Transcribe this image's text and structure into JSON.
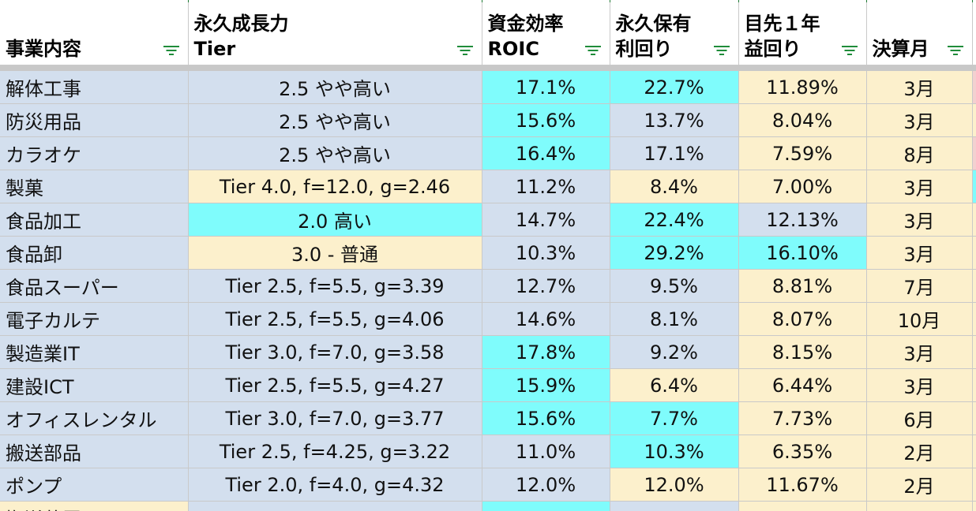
{
  "colors": {
    "blue": "#d3dfee",
    "cyan": "#7ffcfc",
    "yellow": "#fcf0cc",
    "pink": "#f3d0d0",
    "header_bg": "#ffffff",
    "filter_green": "#1f8c3a"
  },
  "headers": [
    {
      "line1": "事業内容",
      "line2": ""
    },
    {
      "line1": "永久成長力",
      "line2": "Tier"
    },
    {
      "line1": "資金効率",
      "line2": "ROIC"
    },
    {
      "line1": "永久保有",
      "line2": "利回り"
    },
    {
      "line1": "目先１年",
      "line2": "益回り"
    },
    {
      "line1": "決算月",
      "line2": ""
    }
  ],
  "filter_icon": "filter-icon",
  "rows": [
    {
      "cells": [
        {
          "text": "解体工事",
          "color": "blue"
        },
        {
          "text": "2.5 やや高い",
          "color": "blue"
        },
        {
          "text": "17.1%",
          "color": "cyan"
        },
        {
          "text": "22.7%",
          "color": "cyan"
        },
        {
          "text": "11.89%",
          "color": "yellow"
        },
        {
          "text": "3月",
          "color": "yellow"
        },
        {
          "text": "",
          "color": "pink"
        }
      ]
    },
    {
      "cells": [
        {
          "text": "防災用品",
          "color": "blue"
        },
        {
          "text": "2.5 やや高い",
          "color": "blue"
        },
        {
          "text": "15.6%",
          "color": "cyan"
        },
        {
          "text": "13.7%",
          "color": "blue"
        },
        {
          "text": "8.04%",
          "color": "yellow"
        },
        {
          "text": "3月",
          "color": "yellow"
        },
        {
          "text": "",
          "color": "yellow"
        }
      ]
    },
    {
      "cells": [
        {
          "text": "カラオケ",
          "color": "blue"
        },
        {
          "text": "2.5 やや高い",
          "color": "blue"
        },
        {
          "text": "16.4%",
          "color": "cyan"
        },
        {
          "text": "17.1%",
          "color": "blue"
        },
        {
          "text": "7.59%",
          "color": "yellow"
        },
        {
          "text": "8月",
          "color": "yellow"
        },
        {
          "text": "",
          "color": "pink"
        }
      ]
    },
    {
      "cells": [
        {
          "text": "製菓",
          "color": "blue"
        },
        {
          "text": "Tier 4.0,  f=12.0,  g=2.46",
          "color": "yellow"
        },
        {
          "text": "11.2%",
          "color": "blue"
        },
        {
          "text": "8.4%",
          "color": "yellow"
        },
        {
          "text": "7.00%",
          "color": "yellow"
        },
        {
          "text": "3月",
          "color": "yellow"
        },
        {
          "text": "",
          "color": "cyan"
        }
      ]
    },
    {
      "cells": [
        {
          "text": "食品加工",
          "color": "blue"
        },
        {
          "text": "2.0 高い",
          "color": "cyan"
        },
        {
          "text": "14.7%",
          "color": "blue"
        },
        {
          "text": "22.4%",
          "color": "cyan"
        },
        {
          "text": "12.13%",
          "color": "blue"
        },
        {
          "text": "3月",
          "color": "yellow"
        },
        {
          "text": "",
          "color": "yellow"
        }
      ]
    },
    {
      "cells": [
        {
          "text": "食品卸",
          "color": "blue"
        },
        {
          "text": "3.0 - 普通",
          "color": "yellow"
        },
        {
          "text": "10.3%",
          "color": "blue"
        },
        {
          "text": "29.2%",
          "color": "cyan"
        },
        {
          "text": "16.10%",
          "color": "cyan"
        },
        {
          "text": "3月",
          "color": "yellow"
        },
        {
          "text": "",
          "color": "yellow"
        }
      ]
    },
    {
      "cells": [
        {
          "text": "食品スーパー",
          "color": "blue"
        },
        {
          "text": "Tier 2.5,  f=5.5,  g=3.39",
          "color": "blue"
        },
        {
          "text": "12.7%",
          "color": "blue"
        },
        {
          "text": "9.5%",
          "color": "blue"
        },
        {
          "text": "8.81%",
          "color": "yellow"
        },
        {
          "text": "7月",
          "color": "yellow"
        },
        {
          "text": "",
          "color": "yellow"
        }
      ]
    },
    {
      "cells": [
        {
          "text": "電子カルテ",
          "color": "blue"
        },
        {
          "text": "Tier 2.5,  f=5.5,  g=4.06",
          "color": "blue"
        },
        {
          "text": "14.6%",
          "color": "blue"
        },
        {
          "text": "8.1%",
          "color": "blue"
        },
        {
          "text": "8.07%",
          "color": "yellow"
        },
        {
          "text": "10月",
          "color": "yellow"
        },
        {
          "text": "",
          "color": "yellow"
        }
      ]
    },
    {
      "cells": [
        {
          "text": "製造業IT",
          "color": "blue"
        },
        {
          "text": "Tier 3.0,  f=7.0,  g=3.58",
          "color": "blue"
        },
        {
          "text": "17.8%",
          "color": "cyan"
        },
        {
          "text": "9.2%",
          "color": "blue"
        },
        {
          "text": "8.15%",
          "color": "yellow"
        },
        {
          "text": "3月",
          "color": "yellow"
        },
        {
          "text": "",
          "color": "yellow"
        }
      ]
    },
    {
      "cells": [
        {
          "text": "建設ICT",
          "color": "blue"
        },
        {
          "text": "Tier 2.5,  f=5.5,  g=4.27",
          "color": "blue"
        },
        {
          "text": "15.9%",
          "color": "cyan"
        },
        {
          "text": "6.4%",
          "color": "yellow"
        },
        {
          "text": "6.44%",
          "color": "yellow"
        },
        {
          "text": "3月",
          "color": "yellow"
        },
        {
          "text": "",
          "color": "yellow"
        }
      ]
    },
    {
      "cells": [
        {
          "text": "オフィスレンタル",
          "color": "blue"
        },
        {
          "text": "Tier 3.0,  f=7.0,  g=3.77",
          "color": "blue"
        },
        {
          "text": "15.6%",
          "color": "cyan"
        },
        {
          "text": "7.7%",
          "color": "cyan"
        },
        {
          "text": "7.73%",
          "color": "yellow"
        },
        {
          "text": "6月",
          "color": "yellow"
        },
        {
          "text": "",
          "color": "yellow"
        }
      ]
    },
    {
      "cells": [
        {
          "text": "搬送部品",
          "color": "blue"
        },
        {
          "text": "Tier 2.5,  f=4.25,  g=3.22",
          "color": "blue"
        },
        {
          "text": "11.0%",
          "color": "blue"
        },
        {
          "text": "10.3%",
          "color": "cyan"
        },
        {
          "text": "6.35%",
          "color": "yellow"
        },
        {
          "text": "2月",
          "color": "yellow"
        },
        {
          "text": "",
          "color": "yellow"
        }
      ]
    },
    {
      "cells": [
        {
          "text": "ポンプ",
          "color": "blue"
        },
        {
          "text": "Tier 2.0,  f=4.0,  g=4.32",
          "color": "blue"
        },
        {
          "text": "12.0%",
          "color": "blue"
        },
        {
          "text": "12.0%",
          "color": "yellow"
        },
        {
          "text": "11.67%",
          "color": "yellow"
        },
        {
          "text": "2月",
          "color": "yellow"
        },
        {
          "text": "",
          "color": "yellow"
        }
      ]
    },
    {
      "cells": [
        {
          "text": "搬送装置",
          "color": "yellow"
        },
        {
          "text": "",
          "color": "blue"
        },
        {
          "text": "",
          "color": "cyan"
        },
        {
          "text": "",
          "color": "blue"
        },
        {
          "text": "",
          "color": "yellow"
        },
        {
          "text": "",
          "color": "yellow"
        },
        {
          "text": "",
          "color": "yellow"
        }
      ]
    }
  ]
}
